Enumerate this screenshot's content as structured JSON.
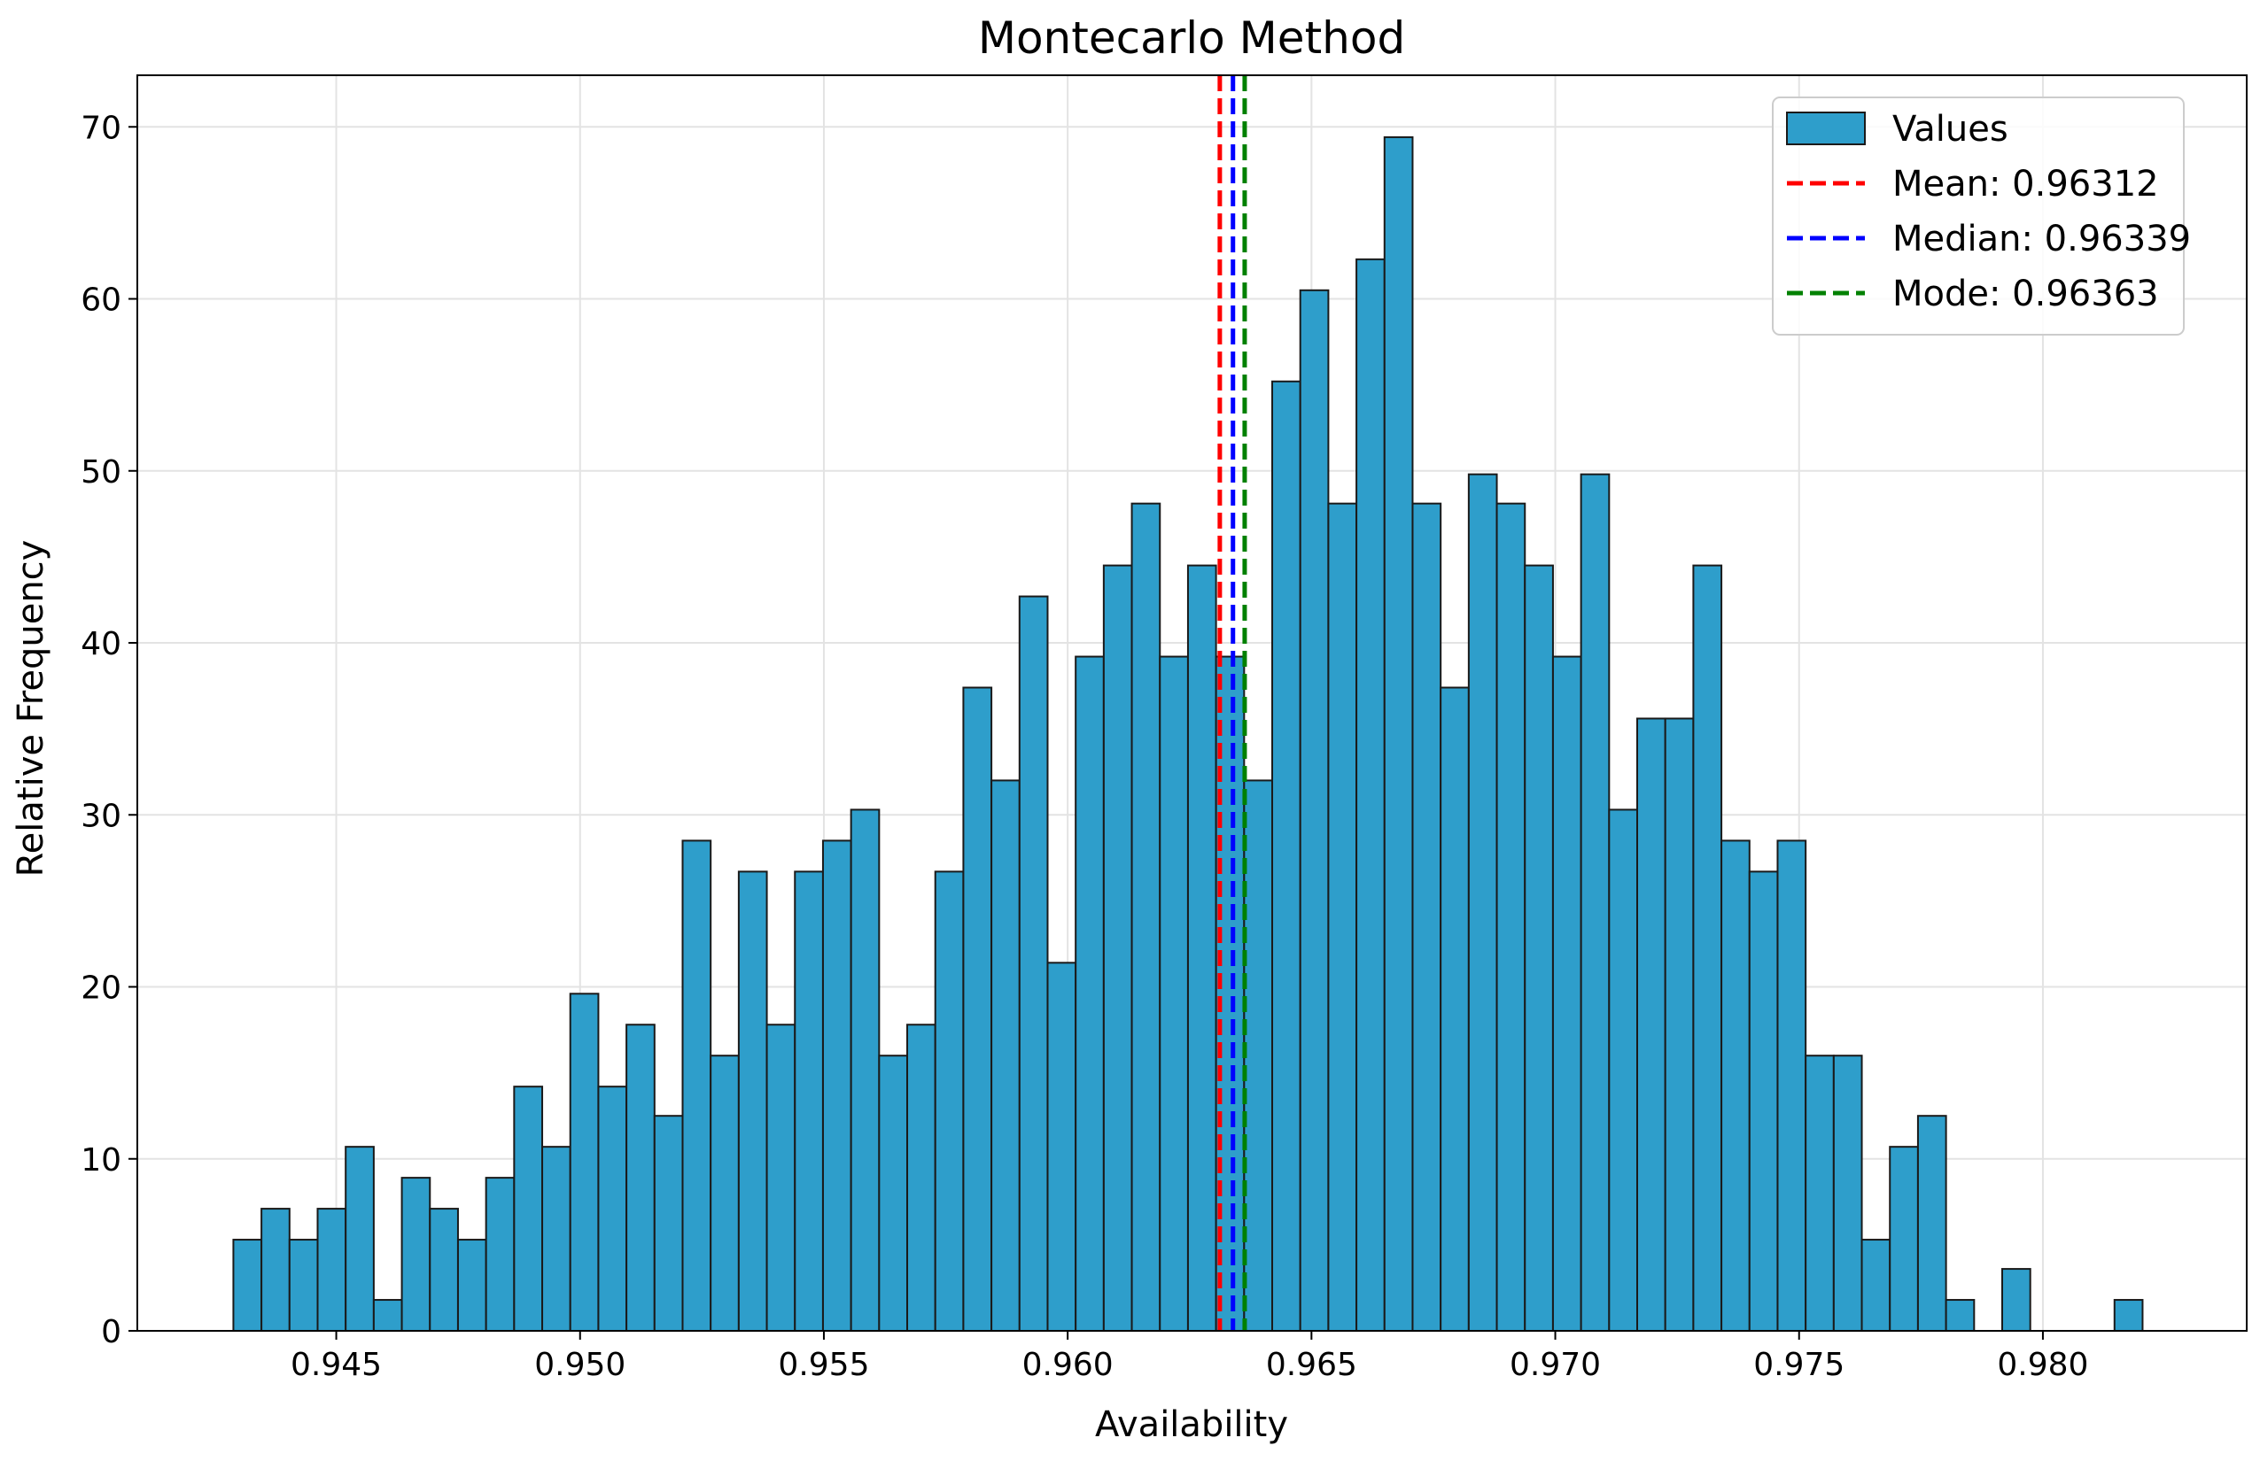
{
  "chart_data": {
    "type": "bar",
    "title": "Montecarlo Method",
    "xlabel": "Availability",
    "ylabel": "Relative Frequency",
    "xlim": [
      0.94092,
      0.98418
    ],
    "ylim": [
      0,
      73
    ],
    "grid": true,
    "legend_position": "top-right",
    "x_ticks": [
      0.945,
      0.95,
      0.955,
      0.96,
      0.965,
      0.97,
      0.975,
      0.98
    ],
    "x_tick_labels": [
      "0.945",
      "0.950",
      "0.955",
      "0.960",
      "0.965",
      "0.970",
      "0.975",
      "0.980"
    ],
    "y_ticks": [
      0,
      10,
      20,
      30,
      40,
      50,
      60,
      70
    ],
    "y_tick_labels": [
      "0",
      "10",
      "20",
      "30",
      "40",
      "50",
      "60",
      "70"
    ],
    "bin_start": 0.94289,
    "bin_width": 0.0005758,
    "bar_color": "#2e9ecb",
    "bar_edge_color": "#1a1a1a",
    "series": [
      {
        "name": "Values",
        "values": [
          5.3,
          7.1,
          5.3,
          7.1,
          10.7,
          1.8,
          8.9,
          7.1,
          5.3,
          8.9,
          14.2,
          10.7,
          19.6,
          14.2,
          17.8,
          12.5,
          28.5,
          16.0,
          26.7,
          17.8,
          26.7,
          28.5,
          30.3,
          16.0,
          17.8,
          26.7,
          37.4,
          32.0,
          42.7,
          21.4,
          39.2,
          44.5,
          48.1,
          39.2,
          44.5,
          39.2,
          32.0,
          55.2,
          60.5,
          48.1,
          62.3,
          69.4,
          48.1,
          37.4,
          49.8,
          48.1,
          44.5,
          39.2,
          49.8,
          30.3,
          35.6,
          35.6,
          44.5,
          28.5,
          26.7,
          28.5,
          16.0,
          16.0,
          5.3,
          10.7,
          12.5,
          1.8,
          0,
          3.6,
          0,
          0,
          0,
          1.8
        ]
      }
    ],
    "reference_lines": [
      {
        "name": "Mean: 0.96312",
        "x": 0.96312,
        "color": "#ff0000"
      },
      {
        "name": "Median: 0.96339",
        "x": 0.96339,
        "color": "#0000ff"
      },
      {
        "name": "Mode: 0.96363",
        "x": 0.96363,
        "color": "#008000"
      }
    ]
  }
}
